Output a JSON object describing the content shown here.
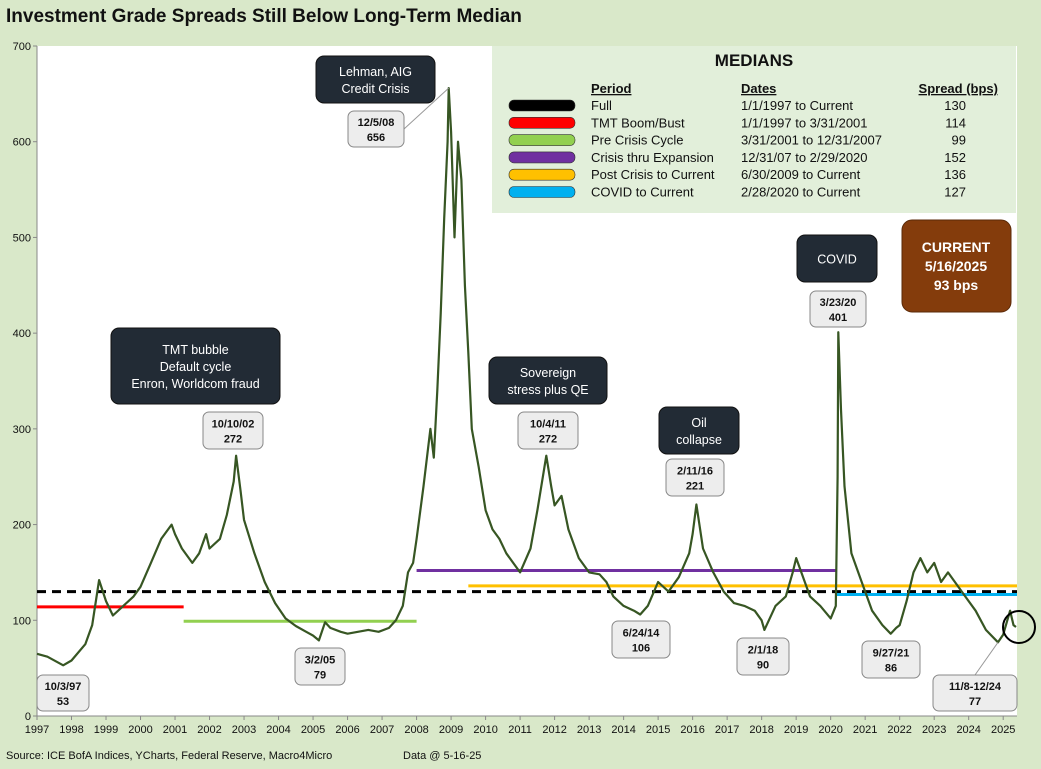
{
  "title": "Investment Grade Spreads Still Below Long-Term Median",
  "source": "Source: ICE BofA Indices, YCharts, Federal Reserve, Macro4Micro",
  "data_date": "Data @ 5-16-25",
  "medians": {
    "heading": "MEDIANS",
    "col_period": "Period",
    "col_dates": "Dates",
    "col_spread": "Spread (bps)",
    "rows": [
      {
        "period": "Full",
        "dates": "1/1/1997  to Current",
        "spread": "130",
        "color": "#000000"
      },
      {
        "period": "TMT Boom/Bust",
        "dates": "1/1/1997 to 3/31/2001",
        "spread": "114",
        "color": "#ff0000"
      },
      {
        "period": "Pre Crisis Cycle",
        "dates": "3/31/2001  to 12/31/2007",
        "spread": "99",
        "color": "#92d050"
      },
      {
        "period": "Crisis thru Expansion",
        "dates": "12/31/07 to 2/29/2020",
        "spread": "152",
        "color": "#7030a0"
      },
      {
        "period": "Post Crisis to Current",
        "dates": "6/30/2009  to Current",
        "spread": "136",
        "color": "#ffc000"
      },
      {
        "period": "COVID to Current",
        "dates": " 2/28/2020  to Current",
        "spread": "127",
        "color": "#00b0f0"
      }
    ]
  },
  "current_box": {
    "line1": "CURRENT",
    "line2": "5/16/2025",
    "line3": "93 bps",
    "color": "#843c0c"
  },
  "chart_data": {
    "type": "line",
    "title": "Investment Grade Spreads Still Below Long-Term Median",
    "xlabel": "",
    "ylabel": "",
    "xlim": [
      1997.0,
      2025.4
    ],
    "ylim": [
      0,
      700
    ],
    "yticks": [
      0,
      100,
      200,
      300,
      400,
      500,
      600,
      700
    ],
    "xticks": [
      1997,
      1998,
      1999,
      2000,
      2001,
      2002,
      2003,
      2004,
      2005,
      2006,
      2007,
      2008,
      2009,
      2010,
      2011,
      2012,
      2013,
      2014,
      2015,
      2016,
      2017,
      2018,
      2019,
      2020,
      2021,
      2022,
      2023,
      2024,
      2025
    ],
    "series": [
      {
        "color": "#375623",
        "x": [
          1997.0,
          1997.3,
          1997.76,
          1998.0,
          1998.4,
          1998.6,
          1998.8,
          1999.0,
          1999.2,
          1999.5,
          1999.8,
          2000.0,
          2000.3,
          2000.6,
          2000.9,
          2001.0,
          2001.2,
          2001.5,
          2001.7,
          2001.9,
          2002.0,
          2002.3,
          2002.5,
          2002.7,
          2002.77,
          2002.9,
          2003.0,
          2003.3,
          2003.6,
          2003.9,
          2004.2,
          2004.5,
          2004.8,
          2005.0,
          2005.17,
          2005.35,
          2005.5,
          2005.8,
          2006.0,
          2006.3,
          2006.6,
          2006.9,
          2007.2,
          2007.4,
          2007.6,
          2007.75,
          2007.9,
          2008.0,
          2008.2,
          2008.4,
          2008.5,
          2008.6,
          2008.7,
          2008.8,
          2008.9,
          2008.93,
          2009.0,
          2009.1,
          2009.2,
          2009.3,
          2009.4,
          2009.5,
          2009.6,
          2009.8,
          2010.0,
          2010.2,
          2010.4,
          2010.6,
          2010.8,
          2011.0,
          2011.3,
          2011.5,
          2011.76,
          2011.9,
          2012.0,
          2012.2,
          2012.4,
          2012.7,
          2013.0,
          2013.3,
          2013.5,
          2013.7,
          2014.0,
          2014.3,
          2014.48,
          2014.7,
          2015.0,
          2015.3,
          2015.6,
          2015.9,
          2016.0,
          2016.11,
          2016.3,
          2016.6,
          2016.9,
          2017.2,
          2017.5,
          2017.8,
          2018.0,
          2018.08,
          2018.4,
          2018.7,
          2018.9,
          2019.0,
          2019.2,
          2019.4,
          2019.7,
          2020.0,
          2020.15,
          2020.2,
          2020.22,
          2020.3,
          2020.4,
          2020.6,
          2020.9,
          2021.2,
          2021.5,
          2021.74,
          2021.9,
          2022.0,
          2022.2,
          2022.4,
          2022.6,
          2022.8,
          2023.0,
          2023.2,
          2023.4,
          2023.6,
          2023.9,
          2024.2,
          2024.5,
          2024.85,
          2025.0,
          2025.2,
          2025.3,
          2025.37
        ],
        "y": [
          65,
          62,
          53,
          58,
          75,
          95,
          142,
          120,
          105,
          115,
          125,
          135,
          160,
          185,
          200,
          190,
          175,
          160,
          170,
          190,
          175,
          185,
          210,
          245,
          272,
          235,
          205,
          170,
          140,
          118,
          102,
          94,
          88,
          84,
          79,
          98,
          92,
          88,
          86,
          88,
          90,
          88,
          92,
          100,
          115,
          150,
          160,
          185,
          240,
          300,
          270,
          340,
          420,
          520,
          600,
          656,
          610,
          500,
          600,
          560,
          450,
          380,
          300,
          260,
          215,
          195,
          185,
          170,
          160,
          150,
          175,
          215,
          272,
          240,
          220,
          230,
          195,
          165,
          150,
          148,
          140,
          125,
          115,
          110,
          106,
          115,
          140,
          130,
          145,
          170,
          190,
          221,
          175,
          150,
          130,
          118,
          115,
          110,
          100,
          90,
          115,
          125,
          150,
          165,
          145,
          125,
          115,
          102,
          115,
          250,
          401,
          320,
          240,
          170,
          140,
          110,
          95,
          86,
          92,
          95,
          120,
          150,
          165,
          150,
          160,
          140,
          150,
          140,
          125,
          110,
          90,
          77,
          85,
          110,
          95,
          93
        ]
      }
    ],
    "median_lines": [
      {
        "name": "Full",
        "x": [
          1997.0,
          2025.4
        ],
        "y": 130,
        "color": "#000000",
        "dashed": true
      },
      {
        "name": "TMT Boom/Bust",
        "x": [
          1997.0,
          2001.25
        ],
        "y": 114,
        "color": "#ff0000"
      },
      {
        "name": "Pre Crisis Cycle",
        "x": [
          2001.25,
          2008.0
        ],
        "y": 99,
        "color": "#92d050"
      },
      {
        "name": "Crisis thru Expansion",
        "x": [
          2008.0,
          2020.16
        ],
        "y": 152,
        "color": "#7030a0"
      },
      {
        "name": "Post Crisis to Current",
        "x": [
          2009.5,
          2025.4
        ],
        "y": 136,
        "color": "#ffc000"
      },
      {
        "name": "COVID to Current",
        "x": [
          2020.16,
          2025.4
        ],
        "y": 127,
        "color": "#00b0f0"
      }
    ],
    "callouts": [
      {
        "id": "lehman",
        "date": "12/5/08",
        "value": "656",
        "x": 2008.93,
        "y": 656,
        "note": [
          "Lehman, AIG",
          "Credit Crisis"
        ]
      },
      {
        "id": "tmt",
        "date": "10/10/02",
        "value": "272",
        "x": 2002.77,
        "y": 272,
        "note": [
          "TMT bubble",
          "Default cycle",
          "Enron, Worldcom fraud"
        ]
      },
      {
        "id": "sovereign",
        "date": "10/4/11",
        "value": "272",
        "x": 2011.76,
        "y": 272,
        "note": [
          "Sovereign",
          "stress plus QE"
        ]
      },
      {
        "id": "oil",
        "date": "2/11/16",
        "value": "221",
        "x": 2016.11,
        "y": 221,
        "note": [
          "Oil",
          "collapse"
        ]
      },
      {
        "id": "covid",
        "date": "3/23/20",
        "value": "401",
        "x": 2020.22,
        "y": 401,
        "note": [
          "COVID"
        ]
      },
      {
        "id": "low97",
        "date": "10/3/97",
        "value": "53",
        "x": 1997.76,
        "y": 53
      },
      {
        "id": "low05",
        "date": "3/2/05",
        "value": "79",
        "x": 2005.17,
        "y": 79
      },
      {
        "id": "low14",
        "date": "6/24/14",
        "value": "106",
        "x": 2014.48,
        "y": 106
      },
      {
        "id": "low18",
        "date": "2/1/18",
        "value": "90",
        "x": 2018.08,
        "y": 90
      },
      {
        "id": "low21",
        "date": "9/27/21",
        "value": "86",
        "x": 2021.74,
        "y": 86
      },
      {
        "id": "low24",
        "date": "11/8-12/24",
        "value": "77",
        "x": 2024.85,
        "y": 77
      }
    ]
  }
}
